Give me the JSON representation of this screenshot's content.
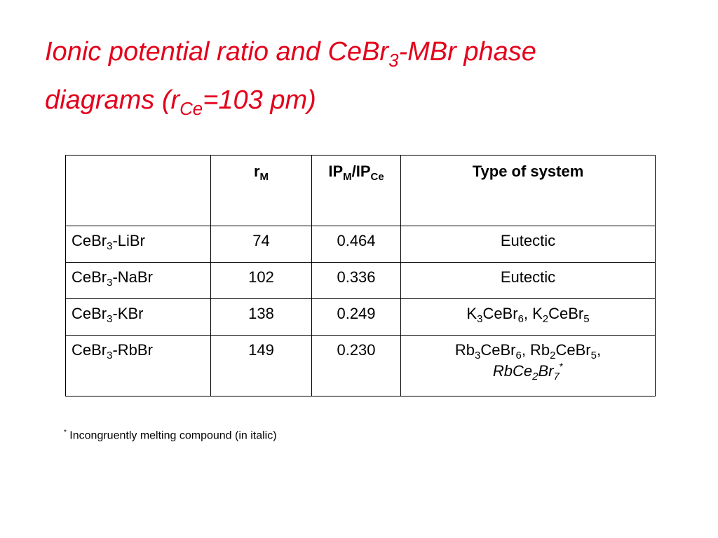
{
  "title": [
    [
      "Ionic potential ratio and CeBr",
      {
        "text": "3",
        "format": "sub"
      },
      "-MBr phase"
    ],
    [
      "diagrams (r",
      {
        "text": "Ce",
        "format": "sub"
      },
      "=103 pm)"
    ]
  ],
  "table": {
    "header": [
      [
        "r",
        {
          "text": "M",
          "format": "sub"
        }
      ],
      [
        "IP",
        {
          "text": "M",
          "format": "sub"
        },
        "/IP",
        {
          "text": "Ce",
          "format": "sub"
        }
      ],
      [
        "Type of system"
      ]
    ],
    "rows": [
      [
        [
          "CeBr",
          {
            "text": "3",
            "format": "sub"
          },
          "-LiBr"
        ],
        74,
        "0.464",
        [
          "Eutectic"
        ]
      ],
      [
        [
          "CeBr",
          {
            "text": "3",
            "format": "sub"
          },
          "-NaBr"
        ],
        102,
        "0.336",
        [
          "Eutectic"
        ]
      ],
      [
        [
          "CeBr",
          {
            "text": "3",
            "format": "sub"
          },
          "-KBr"
        ],
        138,
        "0.249",
        [
          "K",
          {
            "text": "3",
            "format": "sub"
          },
          "CeBr",
          {
            "text": "6",
            "format": "sub"
          },
          ", K",
          {
            "text": "2",
            "format": "sub"
          },
          "CeBr",
          {
            "text": "5",
            "format": "sub"
          }
        ]
      ],
      [
        [
          "CeBr",
          {
            "text": "3",
            "format": "sub"
          },
          "-RbBr"
        ],
        149,
        "0.230",
        [
          [
            "Rb",
            {
              "text": "3",
              "format": "sub"
            },
            "CeBr",
            {
              "text": "6",
              "format": "sub"
            },
            ", Rb",
            {
              "text": "2",
              "format": "sub"
            },
            "CeBr",
            {
              "text": "5",
              "format": "sub"
            },
            ","
          ],
          [
            {
              "text": "RbCe",
              "format": "italic"
            },
            {
              "text": "2",
              "format": "italic-sub"
            },
            {
              "text": "Br",
              "format": "italic"
            },
            {
              "text": "7",
              "format": "italic-sub"
            },
            {
              "text": "*",
              "format": "sup"
            }
          ]
        ]
      ]
    ]
  },
  "footnote": [
    {
      "text": "*",
      "format": "sup"
    },
    " Incongruently melting compound (in italic)"
  ]
}
